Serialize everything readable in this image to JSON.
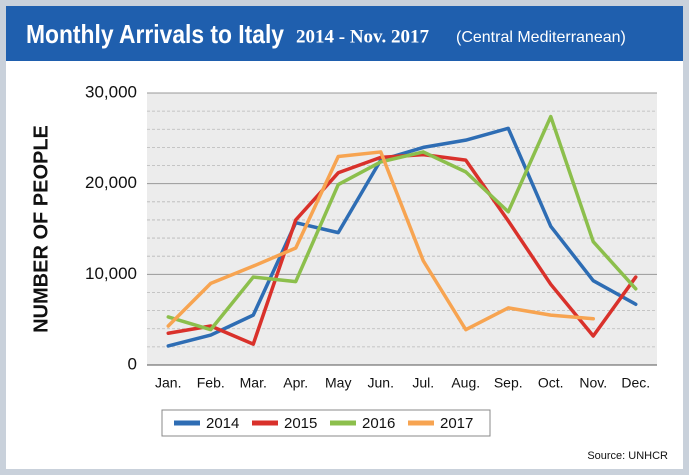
{
  "chart_data": {
    "type": "line",
    "title": "Monthly Arrivals to Italy",
    "subtitle": "2014 - Nov. 2017",
    "subtitle_note": "(Central Mediterranean)",
    "y_label": "NUMBER OF PEOPLE",
    "source": "Source: UNHCR",
    "categories": [
      "Jan.",
      "Feb.",
      "Mar.",
      "Apr.",
      "May",
      "Jun.",
      "Jul.",
      "Aug.",
      "Sep.",
      "Oct.",
      "Nov.",
      "Dec."
    ],
    "series": [
      {
        "name": "2014",
        "color": "#2e6db4",
        "values": [
          2100,
          3300,
          5500,
          15700,
          14600,
          22600,
          24000,
          24800,
          26100,
          15300,
          9300,
          6700
        ]
      },
      {
        "name": "2015",
        "color": "#d9312b",
        "values": [
          3500,
          4300,
          2300,
          16000,
          21200,
          22900,
          23200,
          22600,
          15900,
          8900,
          3200,
          9700
        ]
      },
      {
        "name": "2016",
        "color": "#8cbf4c",
        "values": [
          5300,
          3900,
          9700,
          9200,
          19900,
          22400,
          23500,
          21300,
          16900,
          27400,
          13600,
          8400
        ]
      },
      {
        "name": "2017",
        "color": "#f7a451",
        "values": [
          4300,
          9000,
          10900,
          12900,
          23000,
          23500,
          11500,
          3900,
          6300,
          5500,
          5100,
          null
        ]
      }
    ],
    "ylim": [
      0,
      30000
    ],
    "yticks": [
      0,
      {
        "value": 10000,
        "label": "10,000"
      },
      {
        "value": 20000,
        "label": "20,000"
      },
      {
        "value": 30000,
        "label": "30,000"
      }
    ],
    "grid": true,
    "legend": "bottom"
  }
}
